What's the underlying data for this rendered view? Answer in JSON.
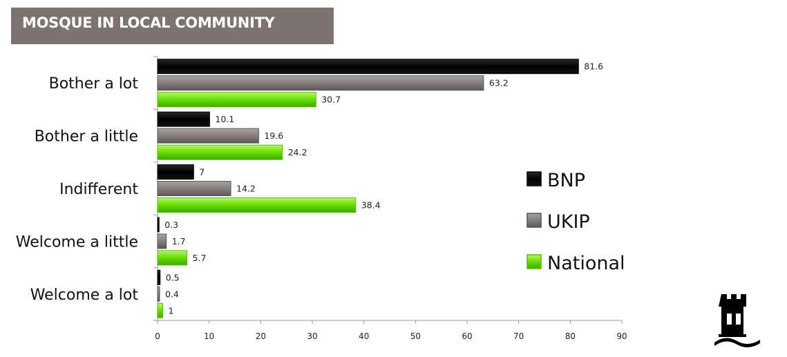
{
  "title": "MOSQUE IN LOCAL COMMUNITY",
  "colors": {
    "title_bg": "#7d7370",
    "BNP": "#0a0a0a",
    "UKIP": "#7a7472",
    "National": "#66dd00"
  },
  "chart_data": {
    "type": "bar",
    "orientation": "horizontal",
    "categories": [
      "Bother a lot",
      "Bother a little",
      "Indifferent",
      "Welcome a little",
      "Welcome a lot"
    ],
    "series": [
      {
        "name": "BNP",
        "values": [
          81.6,
          10.1,
          7,
          0.3,
          0.5
        ],
        "labels": [
          "81.6",
          "10.1",
          "7",
          "0.3",
          "0.5"
        ]
      },
      {
        "name": "UKIP",
        "values": [
          63.2,
          19.6,
          14.2,
          1.7,
          0.4
        ],
        "labels": [
          "63.2",
          "19.6",
          "14.2",
          "1.7",
          "0.4"
        ]
      },
      {
        "name": "National",
        "values": [
          30.7,
          24.2,
          38.4,
          5.7,
          1
        ],
        "labels": [
          "30.7",
          "24.2",
          "38.4",
          "5.7",
          "1"
        ]
      }
    ],
    "xlim": [
      0,
      90
    ],
    "xticks": [
      "0",
      "10",
      "20",
      "30",
      "40",
      "50",
      "60",
      "70",
      "80",
      "90"
    ],
    "grid": false,
    "legend": "right"
  },
  "logo": "castle-logo-icon"
}
